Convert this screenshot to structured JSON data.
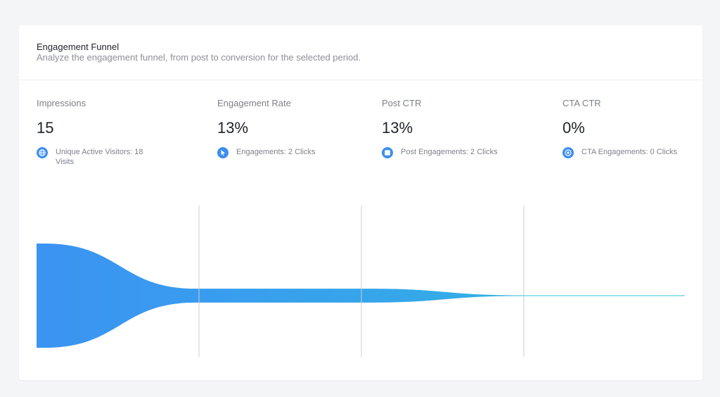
{
  "header": {
    "title": "Engagement Funnel",
    "subtitle": "Analyze the engagement funnel, from post to conversion for the selected period."
  },
  "metrics": [
    {
      "label": "Impressions",
      "value": "15",
      "sub": "Unique Active Visitors: 18 Visits",
      "icon": "globe-icon"
    },
    {
      "label": "Engagement Rate",
      "value": "13%",
      "sub": "Engagements: 2 Clicks",
      "icon": "cursor-icon"
    },
    {
      "label": "Post CTR",
      "value": "13%",
      "sub": "Post Engagements: 2 Clicks",
      "icon": "post-icon"
    },
    {
      "label": "CTA CTR",
      "value": "0%",
      "sub": "CTA Engagements: 0 Clicks",
      "icon": "target-icon"
    }
  ],
  "colors": {
    "funnel_start": "#3b93f2",
    "funnel_end": "#2fc4d8",
    "icon_blue": "#3d8ef0"
  },
  "chart_data": {
    "type": "area",
    "title": "",
    "stages": [
      "Impressions",
      "Engagements",
      "Post Engagements",
      "CTA Engagements"
    ],
    "values": [
      15,
      2,
      2,
      0
    ],
    "xlabel": "",
    "ylabel": "",
    "grid": false
  }
}
